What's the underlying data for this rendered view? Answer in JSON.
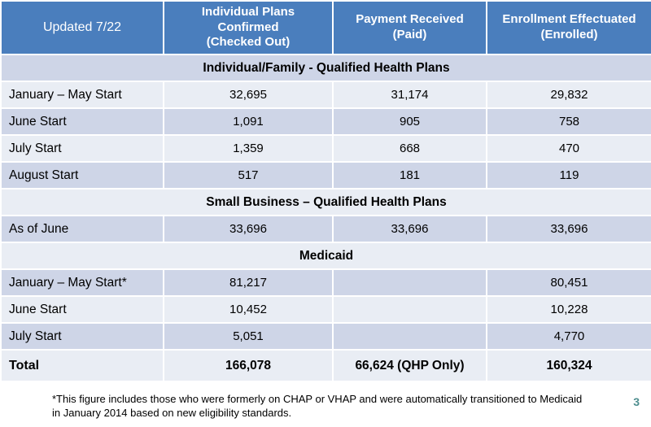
{
  "page_number": "3",
  "colors": {
    "header_bg": "#4a7ebd",
    "band_dark": "#ced5e7",
    "band_light": "#e9edf4",
    "header_text": "#ffffff",
    "body_text": "#000000",
    "grid_line": "#ffffff",
    "page_number": "#4e8e8f"
  },
  "table": {
    "header": {
      "updated": "Updated 7/22",
      "confirmed": "Individual Plans\nConfirmed\n(Checked Out)",
      "paid": "Payment Received\n(Paid)",
      "enrolled": "Enrollment Effectuated\n(Enrolled)"
    },
    "rows": [
      {
        "type": "section",
        "label": "Individual/Family - Qualified Health Plans"
      },
      {
        "type": "data",
        "label": "January – May Start",
        "confirmed": "32,695",
        "paid": "31,174",
        "enrolled": "29,832"
      },
      {
        "type": "data",
        "label": "June Start",
        "confirmed": "1,091",
        "paid": "905",
        "enrolled": "758"
      },
      {
        "type": "data",
        "label": "July Start",
        "confirmed": "1,359",
        "paid": "668",
        "enrolled": "470"
      },
      {
        "type": "data",
        "label": "August Start",
        "confirmed": "517",
        "paid": "181",
        "enrolled": "119"
      },
      {
        "type": "section",
        "label": "Small Business – Qualified Health Plans"
      },
      {
        "type": "data",
        "label": "As of June",
        "confirmed": "33,696",
        "paid": "33,696",
        "enrolled": "33,696"
      },
      {
        "type": "section",
        "label": "Medicaid"
      },
      {
        "type": "data",
        "label": "January – May Start*",
        "confirmed": "81,217",
        "paid": "",
        "enrolled": "80,451"
      },
      {
        "type": "data",
        "label": "June Start",
        "confirmed": "10,452",
        "paid": "",
        "enrolled": "10,228"
      },
      {
        "type": "data",
        "label": "July Start",
        "confirmed": "5,051",
        "paid": "",
        "enrolled": "4,770"
      },
      {
        "type": "total",
        "label": "Total",
        "confirmed": "166,078",
        "paid": "66,624 (QHP Only)",
        "enrolled": "160,324"
      }
    ]
  },
  "footnote": "*This figure includes those who were formerly on CHAP or VHAP and were automatically transitioned to Medicaid\nin January 2014 based on new eligibility standards."
}
